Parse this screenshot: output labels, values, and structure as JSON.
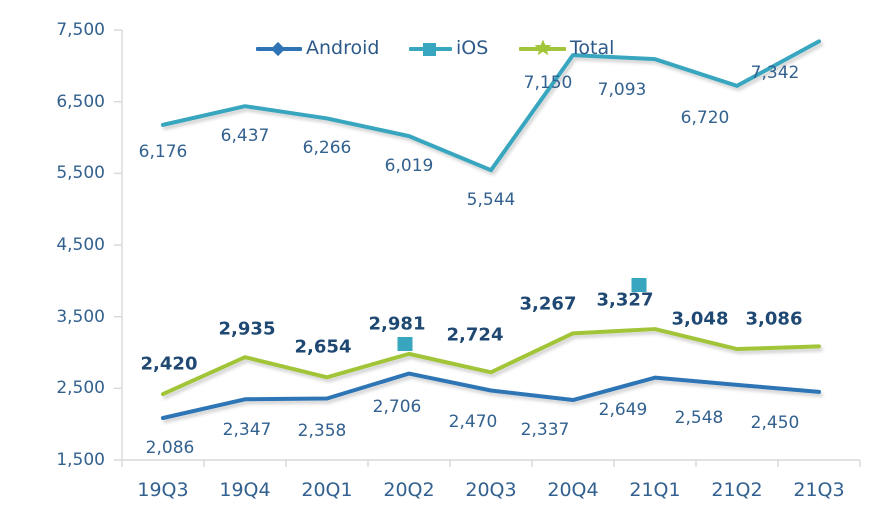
{
  "chart_data": {
    "type": "line",
    "title": "",
    "categories": [
      "19Q3",
      "19Q4",
      "20Q1",
      "20Q2",
      "20Q3",
      "20Q4",
      "21Q1",
      "21Q2",
      "21Q3"
    ],
    "series": [
      {
        "name": "Android",
        "marker": "diamond",
        "labels_bold": false,
        "label_position": "below",
        "values": [
          2086,
          2347,
          2358,
          2706,
          2470,
          2337,
          2649,
          2548,
          2450
        ]
      },
      {
        "name": "iOS",
        "marker": "square",
        "labels_bold": false,
        "label_position": "below",
        "values": [
          6176,
          6437,
          6266,
          6019,
          5544,
          7150,
          7093,
          6720,
          7342
        ]
      },
      {
        "name": "Total",
        "marker": "star",
        "labels_bold": true,
        "label_position": "above",
        "values": [
          2420,
          2935,
          2654,
          2981,
          2724,
          3267,
          3327,
          3048,
          3086
        ]
      }
    ],
    "y_axis": {
      "min": 1500,
      "max": 7500,
      "step": 1000,
      "tick_labels": [
        "1,500",
        "2,500",
        "3,500",
        "4,500",
        "5,500",
        "6,500",
        "7,500"
      ]
    },
    "x_axis": {
      "tick_labels": [
        "19Q3",
        "19Q4",
        "20Q1",
        "20Q2",
        "20Q3",
        "20Q4",
        "21Q1",
        "21Q2",
        "21Q3"
      ]
    },
    "legend": {
      "position": "top",
      "items": [
        "Android",
        "iOS",
        "Total"
      ]
    },
    "grid": false,
    "annotations": [
      {
        "type": "highlight-square",
        "category": "20Q2"
      },
      {
        "type": "highlight-square",
        "category": "21Q1"
      }
    ]
  },
  "colors": {
    "android_line": "#2E74B5",
    "ios_line": "#38A6BE",
    "total_line": "#A2C438",
    "label_regular": "#33618F",
    "label_bold": "#1F4973",
    "axis": "#D9D9D9",
    "background": "#FFFFFF"
  }
}
